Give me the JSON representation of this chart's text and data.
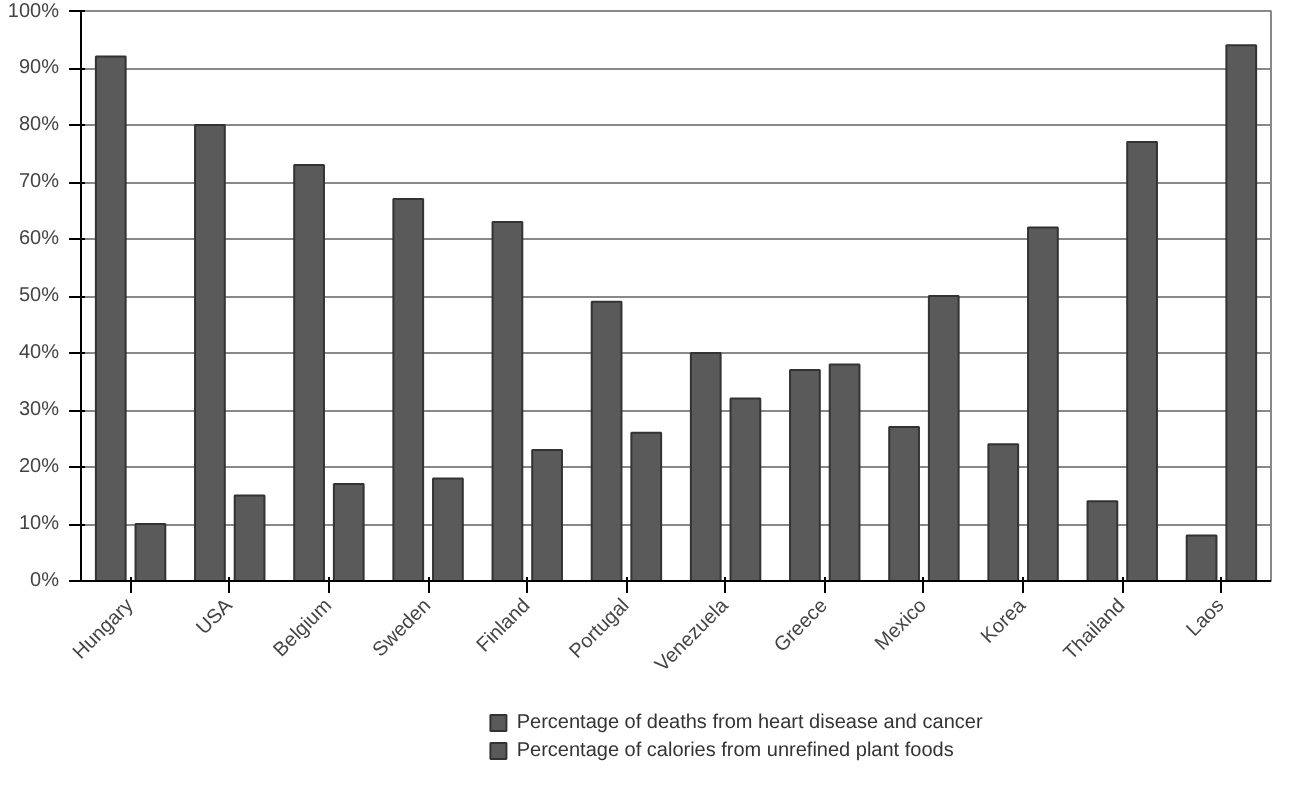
{
  "chart_data": {
    "type": "bar",
    "categories": [
      "Hungary",
      "USA",
      "Belgium",
      "Sweden",
      "Finland",
      "Portugal",
      "Venezuela",
      "Greece",
      "Mexico",
      "Korea",
      "Thailand",
      "Laos"
    ],
    "series": [
      {
        "name": "Percentage of deaths from heart disease and cancer",
        "color": "#5a5a5a",
        "values": [
          92,
          80,
          73,
          67,
          63,
          49,
          40,
          37,
          27,
          24,
          14,
          8
        ]
      },
      {
        "name": "Percentage of calories from unrefined plant foods",
        "color": "#5a5a5a",
        "values": [
          10,
          15,
          17,
          18,
          23,
          26,
          32,
          38,
          50,
          62,
          77,
          94
        ]
      }
    ],
    "ylim": [
      0,
      100
    ],
    "yticks": [
      {
        "value": 0,
        "label": "0%"
      },
      {
        "value": 10,
        "label": "10%"
      },
      {
        "value": 20,
        "label": "20%"
      },
      {
        "value": 30,
        "label": "30%"
      },
      {
        "value": 40,
        "label": "40%"
      },
      {
        "value": 50,
        "label": "50%"
      },
      {
        "value": 60,
        "label": "60%"
      },
      {
        "value": 70,
        "label": "70%"
      },
      {
        "value": 80,
        "label": "80%"
      },
      {
        "value": 90,
        "label": "90%"
      },
      {
        "value": 100,
        "label": "100%"
      }
    ],
    "grid": "y",
    "legend": "bottom"
  }
}
